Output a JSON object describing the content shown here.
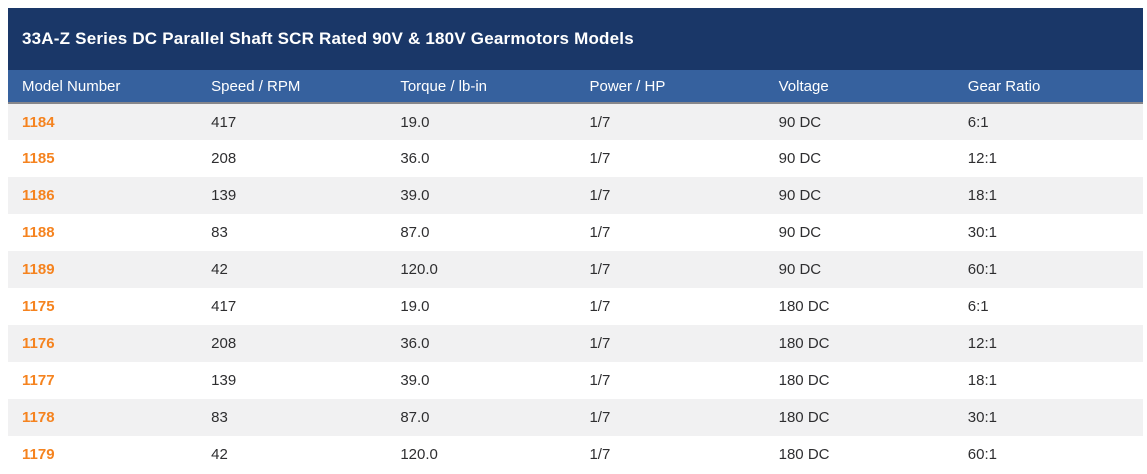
{
  "table": {
    "title": "33A-Z Series DC Parallel Shaft SCR Rated 90V & 180V Gearmotors Models",
    "columns": [
      {
        "key": "model",
        "label": "Model Number"
      },
      {
        "key": "speed",
        "label": "Speed / RPM"
      },
      {
        "key": "torque",
        "label": "Torque / lb-in"
      },
      {
        "key": "power",
        "label": "Power / HP"
      },
      {
        "key": "voltage",
        "label": "Voltage"
      },
      {
        "key": "ratio",
        "label": "Gear Ratio"
      }
    ],
    "rows": [
      {
        "model": "1184",
        "speed": "417",
        "torque": "19.0",
        "power": "1/7",
        "voltage": "90 DC",
        "ratio": "6:1"
      },
      {
        "model": "1185",
        "speed": "208",
        "torque": "36.0",
        "power": "1/7",
        "voltage": "90 DC",
        "ratio": "12:1"
      },
      {
        "model": "1186",
        "speed": "139",
        "torque": "39.0",
        "power": "1/7",
        "voltage": "90 DC",
        "ratio": "18:1"
      },
      {
        "model": "1188",
        "speed": "83",
        "torque": "87.0",
        "power": "1/7",
        "voltage": "90 DC",
        "ratio": "30:1"
      },
      {
        "model": "1189",
        "speed": "42",
        "torque": "120.0",
        "power": "1/7",
        "voltage": "90 DC",
        "ratio": "60:1"
      },
      {
        "model": "1175",
        "speed": "417",
        "torque": "19.0",
        "power": "1/7",
        "voltage": "180 DC",
        "ratio": "6:1"
      },
      {
        "model": "1176",
        "speed": "208",
        "torque": "36.0",
        "power": "1/7",
        "voltage": "180 DC",
        "ratio": "12:1"
      },
      {
        "model": "1177",
        "speed": "139",
        "torque": "39.0",
        "power": "1/7",
        "voltage": "180 DC",
        "ratio": "18:1"
      },
      {
        "model": "1178",
        "speed": "83",
        "torque": "87.0",
        "power": "1/7",
        "voltage": "180 DC",
        "ratio": "30:1"
      },
      {
        "model": "1179",
        "speed": "42",
        "torque": "120.0",
        "power": "1/7",
        "voltage": "180 DC",
        "ratio": "60:1"
      }
    ],
    "colors": {
      "title_bar_bg": "#1a3768",
      "header_bg": "#36619e",
      "header_border": "#87878b",
      "header_text": "#ffffff",
      "row_bg": "#ffffff",
      "row_alt_bg": "#f1f1f2",
      "cell_text": "#2e2e30",
      "model_link": "#f5831f"
    }
  }
}
